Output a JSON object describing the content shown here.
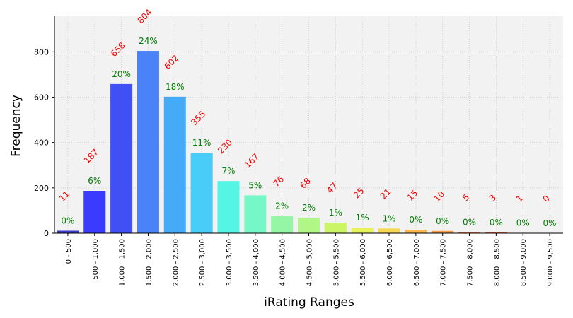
{
  "chart_data": {
    "type": "bar",
    "title": "",
    "xlabel": "iRating Ranges",
    "ylabel": "Frequency",
    "ylim": [
      0,
      960
    ],
    "yticks": [
      "0",
      "200",
      "400",
      "600",
      "800"
    ],
    "grid": true,
    "categories": [
      "0 - 500",
      "500 - 1,000",
      "1,000 - 1,500",
      "1,500 - 2,000",
      "2,000 - 2,500",
      "2,500 - 3,000",
      "3,000 - 3,500",
      "3,500 - 4,000",
      "4,000 - 4,500",
      "4,500 - 5,000",
      "5,000 - 5,500",
      "5,500 - 6,000",
      "6,000 - 6,500",
      "6,500 - 7,000",
      "7,000 - 7,500",
      "7,500 - 8,000",
      "8,000 - 8,500",
      "8,500 - 9,000",
      "9,000 - 9,500"
    ],
    "values": [
      11,
      187,
      658,
      804,
      602,
      355,
      230,
      167,
      76,
      68,
      47,
      25,
      21,
      15,
      10,
      5,
      3,
      1,
      0
    ],
    "count_labels": [
      "11",
      "187",
      "658",
      "804",
      "602",
      "355",
      "230",
      "167",
      "76",
      "68",
      "47",
      "25",
      "21",
      "15",
      "10",
      "5",
      "3",
      "1",
      "0"
    ],
    "percent_labels": [
      "0%",
      "6%",
      "20%",
      "24%",
      "18%",
      "11%",
      "7%",
      "5%",
      "2%",
      "2%",
      "1%",
      "1%",
      "1%",
      "0%",
      "0%",
      "0%",
      "0%",
      "0%",
      "0%"
    ],
    "colors": [
      "#3a3acc",
      "#3b3bff",
      "#4150f5",
      "#4a82f8",
      "#45aaf8",
      "#47cdf8",
      "#55f5e5",
      "#75f7c8",
      "#95f7a5",
      "#b0f785",
      "#cbf565",
      "#e5f25a",
      "#f7d855",
      "#f8b84e",
      "#f89a48",
      "#f57842",
      "#f05a3a",
      "#dd3a30",
      "#cc2222"
    ],
    "colors_note": "rainbow gradient",
    "label_colors": {
      "count": "#ff0000",
      "percent": "#008000"
    }
  }
}
